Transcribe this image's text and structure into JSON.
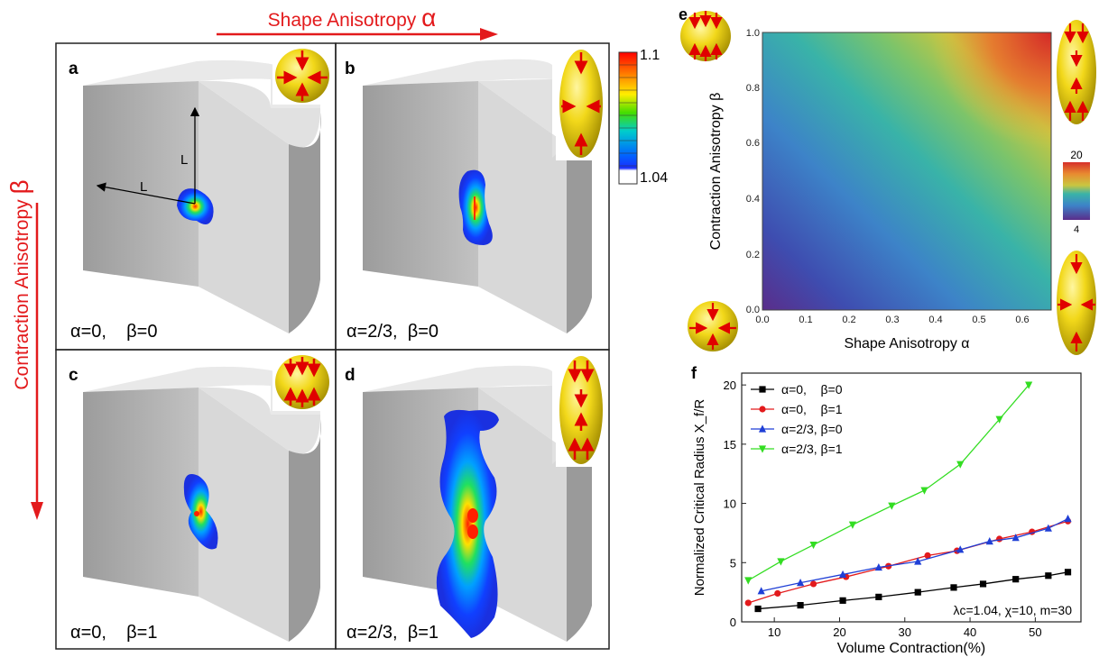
{
  "top_axis": {
    "label": "Shape Anisotropy",
    "symbol": "α"
  },
  "left_axis": {
    "label": "Contraction Anisotropy",
    "symbol": "β"
  },
  "panels": [
    {
      "id": "a",
      "caption": "α=0,    β=0",
      "lengths": [
        "L",
        "L"
      ]
    },
    {
      "id": "b",
      "caption": "α=2/3,  β=0"
    },
    {
      "id": "c",
      "caption": "α=0,    β=1"
    },
    {
      "id": "d",
      "caption": "α=2/3,  β=1"
    }
  ],
  "colorbar": {
    "max": "1.1",
    "min": "1.04"
  },
  "panel_e": {
    "id": "e",
    "xlabel": "Shape Anisotropy α",
    "ylabel": "Contraction Anisotropy β",
    "xticks": [
      "0.0",
      "0.1",
      "0.2",
      "0.3",
      "0.4",
      "0.5",
      "0.6"
    ],
    "yticks": [
      "0.0",
      "0.2",
      "0.4",
      "0.6",
      "0.8",
      "1.0"
    ],
    "colorbar": {
      "max": "20",
      "min": "4"
    }
  },
  "chart_data": {
    "type": "line",
    "id": "f",
    "xlabel": "Volume Contraction(%)",
    "ylabel": "Normalized Critical Radius X_f/R",
    "xlim": [
      5,
      57
    ],
    "ylim": [
      0,
      21
    ],
    "xticks": [
      10,
      20,
      30,
      40,
      50
    ],
    "yticks": [
      0,
      5,
      10,
      15,
      20
    ],
    "annotation": "λc=1.04, χ=10, m=30",
    "legend_position": "top-left",
    "series": [
      {
        "name": "α=0,    β=0",
        "color": "#000000",
        "marker": "square",
        "x": [
          7.5,
          14,
          20.5,
          26,
          32,
          37.5,
          42,
          47,
          52,
          55
        ],
        "y": [
          1.1,
          1.4,
          1.8,
          2.1,
          2.5,
          2.9,
          3.2,
          3.6,
          3.9,
          4.2
        ]
      },
      {
        "name": "α=0,    β=1",
        "color": "#e31a1c",
        "marker": "circle",
        "x": [
          6,
          10.5,
          16,
          21,
          27.5,
          33.5,
          38,
          44.5,
          49.5,
          55
        ],
        "y": [
          1.6,
          2.4,
          3.2,
          3.8,
          4.7,
          5.6,
          6.0,
          7.0,
          7.6,
          8.5
        ]
      },
      {
        "name": "α=2/3, β=0",
        "color": "#1f3fd6",
        "marker": "triangle-up",
        "x": [
          8,
          14,
          20.5,
          26,
          32,
          38.5,
          43,
          47,
          52,
          55
        ],
        "y": [
          2.6,
          3.3,
          4.0,
          4.6,
          5.1,
          6.1,
          6.8,
          7.1,
          7.9,
          8.7
        ]
      },
      {
        "name": "α=2/3, β=1",
        "color": "#33dd22",
        "marker": "triangle-down",
        "x": [
          6,
          11,
          16,
          22,
          28,
          33,
          38.5,
          44.5,
          49
        ],
        "y": [
          3.5,
          5.1,
          6.5,
          8.2,
          9.8,
          11.1,
          13.3,
          17.1,
          20.0
        ]
      }
    ]
  }
}
